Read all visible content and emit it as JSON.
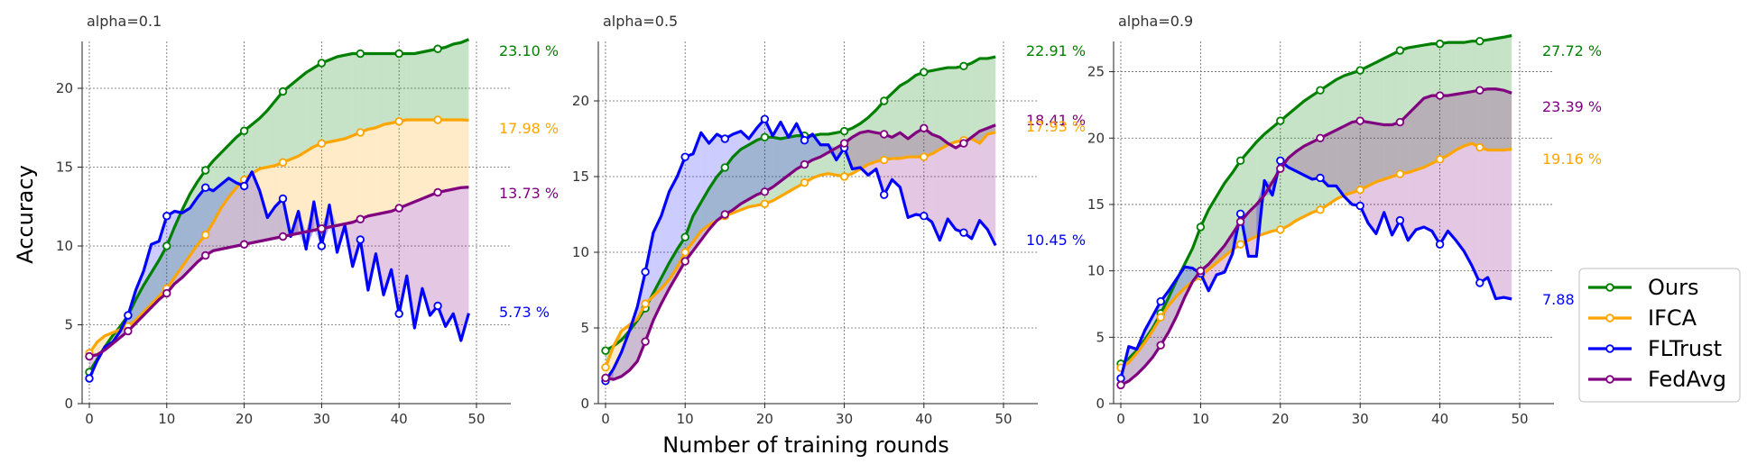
{
  "figure": {
    "ylabel": "Accuracy",
    "xlabel": "Number of training rounds"
  },
  "legend": {
    "placement": "right",
    "entries": [
      {
        "name": "Ours",
        "color": "#008000"
      },
      {
        "name": "IFCA",
        "color": "#FFA500"
      },
      {
        "name": "FLTrust",
        "color": "#0000FF"
      },
      {
        "name": "FedAvg",
        "color": "#800080"
      }
    ]
  },
  "chart_data": [
    {
      "type": "line",
      "title": "alpha=0.1",
      "xlim": [
        0,
        50
      ],
      "ylim": [
        0,
        24
      ],
      "xticks": [
        0,
        10,
        20,
        30,
        40,
        50
      ],
      "yticks": [
        0,
        5,
        10,
        15,
        20
      ],
      "grid": true,
      "fill_between_series": true,
      "marker_every": 5,
      "x": [
        0,
        1,
        2,
        3,
        4,
        5,
        6,
        7,
        8,
        9,
        10,
        11,
        12,
        13,
        14,
        15,
        16,
        17,
        18,
        19,
        20,
        21,
        22,
        23,
        24,
        25,
        26,
        27,
        28,
        29,
        30,
        31,
        32,
        33,
        34,
        35,
        36,
        37,
        38,
        39,
        40,
        41,
        42,
        43,
        44,
        45,
        46,
        47,
        48,
        49
      ],
      "end_labels": [
        {
          "series": "Ours",
          "text": "23.10 %"
        },
        {
          "series": "IFCA",
          "text": "17.98 %"
        },
        {
          "series": "FedAvg",
          "text": "13.73 %"
        },
        {
          "series": "FLTrust",
          "text": "5.73 %"
        }
      ],
      "series": [
        {
          "name": "Ours",
          "color": "#008000",
          "values": [
            2.0,
            2.8,
            3.6,
            4.3,
            4.9,
            5.6,
            6.6,
            7.5,
            8.3,
            9.1,
            10.0,
            11.2,
            12.3,
            13.3,
            14.1,
            14.8,
            15.4,
            15.9,
            16.4,
            16.9,
            17.3,
            17.7,
            18.1,
            18.6,
            19.2,
            19.8,
            20.2,
            20.6,
            21.0,
            21.3,
            21.6,
            21.8,
            22.0,
            22.1,
            22.2,
            22.2,
            22.2,
            22.2,
            22.2,
            22.2,
            22.2,
            22.2,
            22.2,
            22.3,
            22.4,
            22.5,
            22.6,
            22.8,
            22.9,
            23.1
          ]
        },
        {
          "name": "IFCA",
          "color": "#FFA500",
          "values": [
            3.2,
            3.9,
            4.3,
            4.5,
            4.7,
            4.9,
            5.3,
            5.8,
            6.3,
            6.8,
            7.3,
            8.0,
            8.7,
            9.4,
            10.1,
            10.7,
            11.5,
            12.4,
            13.1,
            13.7,
            14.2,
            14.6,
            14.9,
            15.0,
            15.1,
            15.3,
            15.5,
            15.7,
            16.0,
            16.3,
            16.5,
            16.6,
            16.7,
            16.8,
            17.0,
            17.2,
            17.4,
            17.5,
            17.7,
            17.8,
            17.9,
            18.0,
            18.0,
            18.0,
            18.0,
            18.0,
            18.0,
            18.0,
            18.0,
            17.98
          ]
        },
        {
          "name": "FLTrust",
          "color": "#0000FF",
          "values": [
            1.6,
            2.7,
            3.6,
            3.9,
            4.6,
            5.6,
            7.2,
            8.4,
            10.1,
            10.3,
            11.9,
            12.2,
            12.1,
            12.4,
            13.1,
            13.7,
            13.5,
            13.9,
            14.3,
            14.0,
            13.8,
            14.7,
            13.5,
            11.8,
            12.5,
            13.0,
            10.6,
            12.2,
            9.8,
            12.8,
            10.0,
            12.6,
            9.6,
            11.3,
            8.7,
            10.4,
            7.2,
            9.5,
            6.9,
            8.5,
            5.7,
            8.1,
            4.8,
            7.3,
            5.6,
            6.2,
            4.9,
            5.7,
            4.0,
            5.73
          ]
        },
        {
          "name": "FedAvg",
          "color": "#800080",
          "values": [
            3.0,
            3.1,
            3.4,
            3.8,
            4.2,
            4.6,
            5.1,
            5.6,
            6.1,
            6.6,
            7.0,
            7.6,
            8.0,
            8.5,
            9.0,
            9.4,
            9.7,
            9.8,
            9.9,
            10.0,
            10.1,
            10.2,
            10.3,
            10.4,
            10.5,
            10.6,
            10.7,
            10.8,
            10.9,
            11.0,
            11.1,
            11.2,
            11.3,
            11.4,
            11.5,
            11.7,
            11.9,
            12.0,
            12.1,
            12.2,
            12.4,
            12.6,
            12.8,
            13.0,
            13.2,
            13.4,
            13.5,
            13.6,
            13.7,
            13.73
          ]
        }
      ]
    },
    {
      "type": "line",
      "title": "alpha=0.5",
      "xlim": [
        0,
        50
      ],
      "ylim": [
        0,
        25
      ],
      "xticks": [
        0,
        10,
        20,
        30,
        40,
        50
      ],
      "yticks": [
        0,
        5,
        10,
        15,
        20
      ],
      "grid": true,
      "fill_between_series": true,
      "marker_every": 5,
      "x": [
        0,
        1,
        2,
        3,
        4,
        5,
        6,
        7,
        8,
        9,
        10,
        11,
        12,
        13,
        14,
        15,
        16,
        17,
        18,
        19,
        20,
        21,
        22,
        23,
        24,
        25,
        26,
        27,
        28,
        29,
        30,
        31,
        32,
        33,
        34,
        35,
        36,
        37,
        38,
        39,
        40,
        41,
        42,
        43,
        44,
        45,
        46,
        47,
        48,
        49
      ],
      "end_labels": [
        {
          "series": "Ours",
          "text": "22.91 %"
        },
        {
          "series": "FedAvg",
          "text": "18.41 %"
        },
        {
          "series": "IFCA",
          "text": "17.93 %"
        },
        {
          "series": "FLTrust",
          "text": "10.45 %"
        }
      ],
      "series": [
        {
          "name": "Ours",
          "color": "#008000",
          "values": [
            3.5,
            3.8,
            4.2,
            4.8,
            5.5,
            6.3,
            7.3,
            8.3,
            9.3,
            10.2,
            11.0,
            12.4,
            13.3,
            14.2,
            15.0,
            15.6,
            16.3,
            16.8,
            17.1,
            17.4,
            17.6,
            17.6,
            17.5,
            17.6,
            17.7,
            17.7,
            17.7,
            17.8,
            17.8,
            17.9,
            18.0,
            18.2,
            18.5,
            18.9,
            19.4,
            20.0,
            20.5,
            21.0,
            21.3,
            21.7,
            21.9,
            22.0,
            22.1,
            22.2,
            22.2,
            22.3,
            22.5,
            22.8,
            22.8,
            22.91
          ]
        },
        {
          "name": "IFCA",
          "color": "#FFA500",
          "values": [
            2.4,
            3.8,
            4.8,
            5.2,
            5.6,
            6.6,
            7.1,
            7.6,
            8.2,
            9.0,
            10.0,
            10.7,
            11.4,
            11.8,
            12.1,
            12.4,
            12.6,
            12.8,
            13.0,
            13.1,
            13.2,
            13.4,
            13.7,
            14.0,
            14.3,
            14.6,
            14.9,
            15.1,
            15.2,
            15.1,
            15.0,
            15.2,
            15.5,
            15.8,
            16.0,
            16.1,
            16.2,
            16.2,
            16.3,
            16.3,
            16.3,
            16.5,
            16.8,
            17.1,
            17.3,
            17.4,
            17.5,
            17.2,
            17.8,
            17.93
          ]
        },
        {
          "name": "FLTrust",
          "color": "#0000FF",
          "values": [
            1.5,
            2.3,
            3.4,
            4.8,
            6.4,
            8.7,
            11.3,
            12.4,
            14.0,
            15.0,
            16.3,
            16.5,
            17.9,
            17.2,
            17.8,
            17.5,
            17.8,
            18.0,
            17.5,
            18.2,
            18.8,
            17.7,
            18.6,
            17.6,
            18.5,
            17.4,
            17.8,
            17.1,
            17.1,
            16.1,
            16.9,
            15.5,
            15.6,
            15.1,
            15.5,
            13.8,
            14.8,
            14.3,
            12.3,
            12.5,
            12.4,
            12.0,
            10.8,
            12.2,
            11.5,
            11.3,
            10.9,
            12.1,
            11.5,
            10.45
          ]
        },
        {
          "name": "FedAvg",
          "color": "#800080",
          "values": [
            1.7,
            1.6,
            1.8,
            2.2,
            2.8,
            4.1,
            5.5,
            6.6,
            7.6,
            8.5,
            9.4,
            10.1,
            10.8,
            11.5,
            12.1,
            12.5,
            12.8,
            13.2,
            13.5,
            13.8,
            14.0,
            14.3,
            14.7,
            15.1,
            15.5,
            15.8,
            16.1,
            16.3,
            16.6,
            16.9,
            17.2,
            17.6,
            17.9,
            18.0,
            17.9,
            17.8,
            17.6,
            17.9,
            17.5,
            17.9,
            18.2,
            17.8,
            17.6,
            17.2,
            16.9,
            17.2,
            17.6,
            18.0,
            18.2,
            18.41
          ]
        }
      ]
    },
    {
      "type": "line",
      "title": "alpha=0.9",
      "xlim": [
        0,
        50
      ],
      "ylim": [
        0,
        28.5
      ],
      "xticks": [
        0,
        10,
        20,
        30,
        40,
        50
      ],
      "yticks": [
        0,
        5,
        10,
        15,
        20,
        25
      ],
      "grid": true,
      "fill_between_series": true,
      "marker_every": 5,
      "x": [
        0,
        1,
        2,
        3,
        4,
        5,
        6,
        7,
        8,
        9,
        10,
        11,
        12,
        13,
        14,
        15,
        16,
        17,
        18,
        19,
        20,
        21,
        22,
        23,
        24,
        25,
        26,
        27,
        28,
        29,
        30,
        31,
        32,
        33,
        34,
        35,
        36,
        37,
        38,
        39,
        40,
        41,
        42,
        43,
        44,
        45,
        46,
        47,
        48,
        49
      ],
      "end_labels": [
        {
          "series": "Ours",
          "text": "27.72 %"
        },
        {
          "series": "FedAvg",
          "text": "23.39 %"
        },
        {
          "series": "IFCA",
          "text": "19.16 %"
        },
        {
          "series": "FLTrust",
          "text": "7.88 %"
        }
      ],
      "series": [
        {
          "name": "Ours",
          "color": "#008000",
          "values": [
            3.0,
            3.4,
            4.0,
            4.8,
            5.7,
            6.8,
            8.0,
            9.3,
            10.5,
            11.7,
            13.3,
            14.6,
            15.6,
            16.6,
            17.4,
            18.3,
            19.0,
            19.7,
            20.3,
            20.8,
            21.3,
            21.8,
            22.3,
            22.8,
            23.2,
            23.6,
            24.0,
            24.4,
            24.7,
            24.9,
            25.1,
            25.4,
            25.7,
            26.0,
            26.3,
            26.6,
            26.8,
            26.9,
            27.0,
            27.1,
            27.1,
            27.2,
            27.2,
            27.2,
            27.3,
            27.3,
            27.4,
            27.5,
            27.6,
            27.72
          ]
        },
        {
          "name": "IFCA",
          "color": "#FFA500",
          "values": [
            2.7,
            3.1,
            3.8,
            4.6,
            5.5,
            6.5,
            7.4,
            8.1,
            8.7,
            9.2,
            9.6,
            10.1,
            10.6,
            11.1,
            11.6,
            12.0,
            12.3,
            12.6,
            12.8,
            13.0,
            13.1,
            13.4,
            13.8,
            14.1,
            14.4,
            14.6,
            15.0,
            15.4,
            15.7,
            15.9,
            16.1,
            16.4,
            16.7,
            16.9,
            17.1,
            17.3,
            17.4,
            17.6,
            17.8,
            18.1,
            18.4,
            18.7,
            19.1,
            19.4,
            19.6,
            19.3,
            19.1,
            19.1,
            19.1,
            19.16
          ]
        },
        {
          "name": "FLTrust",
          "color": "#0000FF",
          "values": [
            1.9,
            4.3,
            4.1,
            5.5,
            6.6,
            7.7,
            8.5,
            9.4,
            10.3,
            10.2,
            9.8,
            8.5,
            9.7,
            9.9,
            11.3,
            14.3,
            11.1,
            11.1,
            16.8,
            15.7,
            18.3,
            17.8,
            17.5,
            17.2,
            16.9,
            17.0,
            16.4,
            16.4,
            15.6,
            15.0,
            14.9,
            13.6,
            12.8,
            14.4,
            12.7,
            13.8,
            12.3,
            13.1,
            13.3,
            13.0,
            12.0,
            13.0,
            12.3,
            11.5,
            10.4,
            9.1,
            9.5,
            7.9,
            8.0,
            7.88
          ]
        },
        {
          "name": "FedAvg",
          "color": "#800080",
          "values": [
            1.4,
            1.7,
            2.2,
            2.8,
            3.5,
            4.4,
            5.4,
            6.6,
            8.0,
            9.2,
            10.0,
            10.5,
            11.2,
            11.9,
            12.8,
            13.7,
            14.4,
            15.0,
            15.7,
            16.7,
            17.7,
            18.5,
            19.0,
            19.4,
            19.7,
            20.0,
            20.3,
            20.6,
            20.9,
            21.2,
            21.3,
            21.2,
            21.1,
            21.0,
            21.0,
            21.2,
            21.8,
            22.4,
            23.0,
            23.2,
            23.2,
            23.2,
            23.3,
            23.4,
            23.5,
            23.6,
            23.7,
            23.7,
            23.6,
            23.39
          ]
        }
      ]
    }
  ]
}
